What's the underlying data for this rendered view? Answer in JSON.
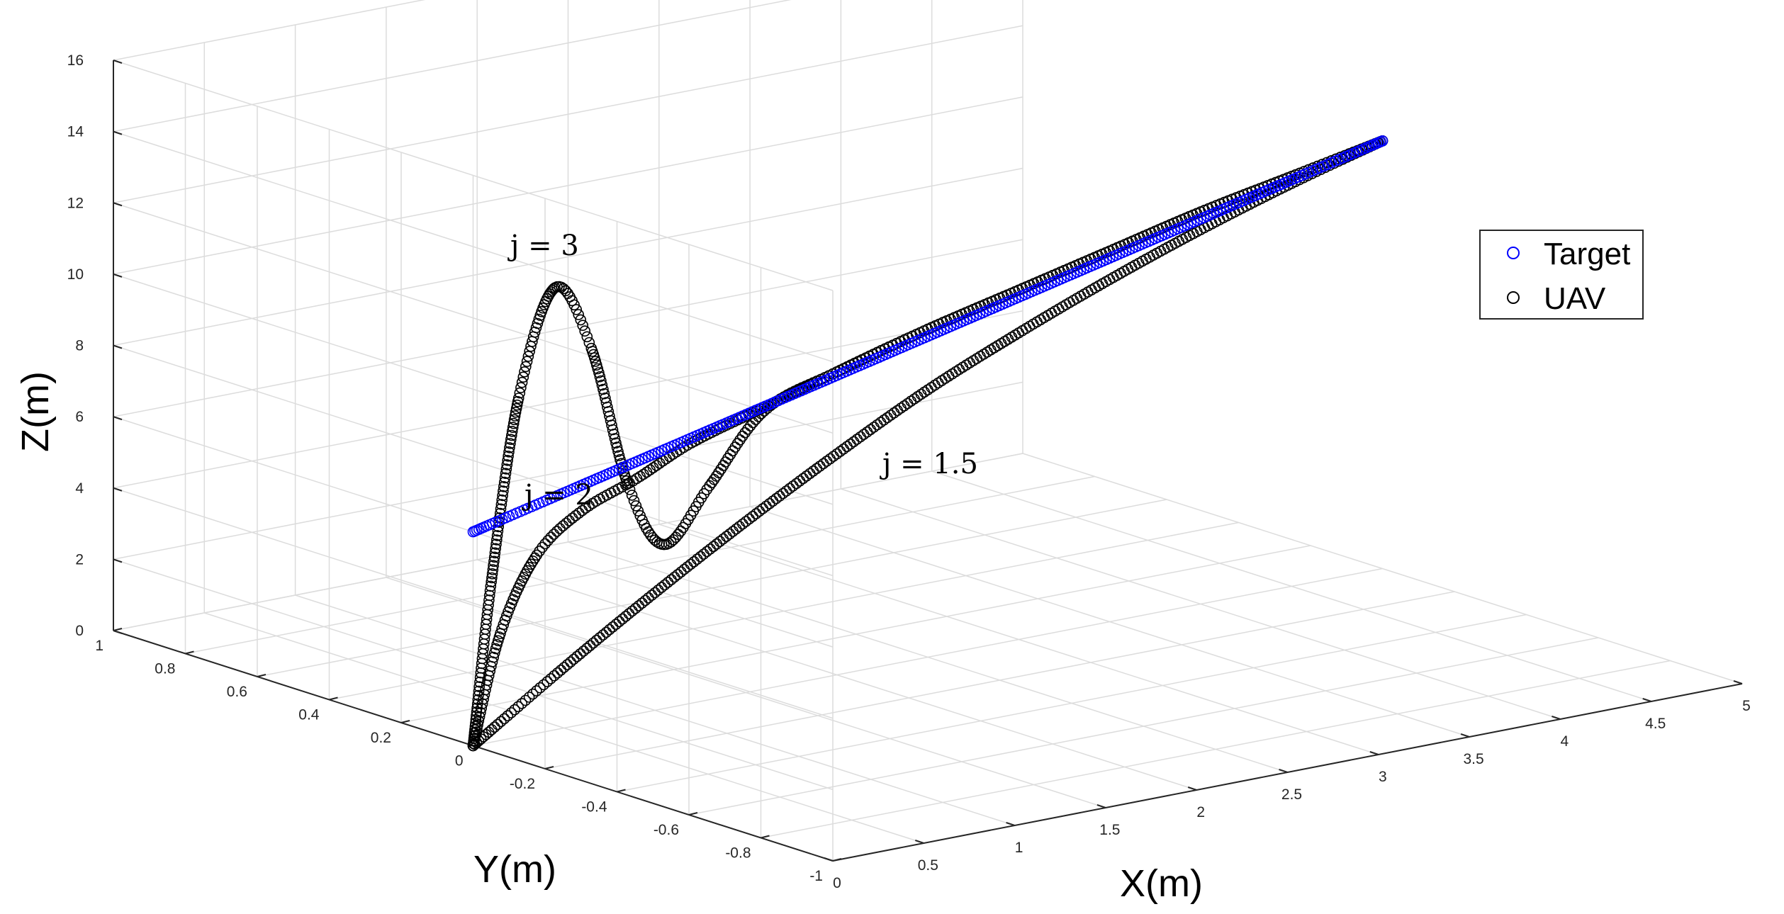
{
  "chart_data": {
    "type": "scatter",
    "projection": "3d",
    "xlabel": "X(m)",
    "ylabel": "Y(m)",
    "zlabel": "Z(m)",
    "xlim": [
      0,
      5
    ],
    "ylim": [
      -1,
      1
    ],
    "zlim": [
      0,
      16
    ],
    "x_ticks": [
      "0",
      "0.5",
      "1",
      "1.5",
      "2",
      "2.5",
      "3",
      "3.5",
      "4",
      "4.5",
      "5"
    ],
    "y_ticks": [
      "-1",
      "-0.8",
      "-0.6",
      "-0.4",
      "-0.2",
      "0",
      "0.2",
      "0.4",
      "0.6",
      "0.8",
      "1"
    ],
    "z_ticks": [
      "0",
      "2",
      "4",
      "6",
      "8",
      "10",
      "12",
      "14",
      "16"
    ],
    "grid": true,
    "legend_position": "top-right",
    "legend": [
      {
        "label": "Target",
        "color": "#0000ff",
        "marker": "circle"
      },
      {
        "label": "UAV",
        "color": "#000000",
        "marker": "circle"
      }
    ],
    "series": [
      {
        "name": "Target",
        "color": "#0000ff",
        "x": [
          0.0,
          0.5,
          1.0,
          1.5,
          2.0,
          2.5,
          3.0,
          3.5,
          4.0,
          4.5,
          5.0
        ],
        "y": [
          0.0,
          0.0,
          0.0,
          0.0,
          0.0,
          0.0,
          0.0,
          0.0,
          0.0,
          0.0,
          0.0
        ],
        "z": [
          6.0,
          6.6,
          7.2,
          7.8,
          8.4,
          9.0,
          9.6,
          10.2,
          10.8,
          11.4,
          12.0
        ]
      },
      {
        "name": "UAV",
        "label": "j = 3",
        "color": "#000000",
        "x": [
          0.0,
          0.1,
          0.25,
          0.45,
          0.65,
          0.85,
          1.05,
          1.3,
          1.6,
          2.0,
          2.5,
          3.0,
          3.5,
          4.0,
          4.5,
          5.0
        ],
        "y": [
          0.0,
          0.0,
          0.0,
          0.0,
          0.0,
          0.0,
          0.0,
          0.0,
          0.0,
          0.0,
          0.0,
          0.0,
          0.0,
          0.0,
          0.0,
          0.0
        ],
        "z": [
          0.0,
          4.5,
          9.5,
          12.4,
          10.5,
          6.5,
          4.6,
          6.0,
          7.8,
          8.5,
          9.2,
          9.8,
          10.4,
          11.0,
          11.5,
          12.0
        ]
      },
      {
        "name": "UAV",
        "label": "j = 2",
        "color": "#000000",
        "x": [
          0.0,
          0.15,
          0.35,
          0.6,
          0.9,
          1.2,
          1.6,
          2.0,
          2.5,
          3.0,
          3.5,
          4.0,
          4.5,
          5.0
        ],
        "y": [
          0.0,
          0.0,
          0.0,
          0.0,
          0.0,
          0.0,
          0.0,
          0.0,
          0.0,
          0.0,
          0.0,
          0.0,
          0.0,
          0.0
        ],
        "z": [
          0.0,
          3.0,
          5.0,
          6.0,
          6.6,
          7.3,
          7.9,
          8.5,
          9.2,
          9.8,
          10.4,
          11.0,
          11.5,
          12.0
        ]
      },
      {
        "name": "UAV",
        "label": "j = 1.5",
        "color": "#000000",
        "x": [
          0.0,
          0.5,
          1.0,
          1.5,
          2.0,
          2.5,
          3.0,
          3.5,
          4.0,
          4.5,
          5.0
        ],
        "y": [
          0.0,
          0.0,
          0.0,
          0.0,
          0.0,
          0.0,
          0.0,
          0.0,
          0.0,
          0.0,
          0.0
        ],
        "z": [
          0.0,
          1.7,
          3.3,
          4.8,
          6.2,
          7.5,
          8.6,
          9.6,
          10.5,
          11.3,
          12.0
        ]
      }
    ],
    "annotations": [
      {
        "text": "j = 3"
      },
      {
        "text": "j = 2"
      },
      {
        "text": "j = 1.5"
      }
    ]
  }
}
